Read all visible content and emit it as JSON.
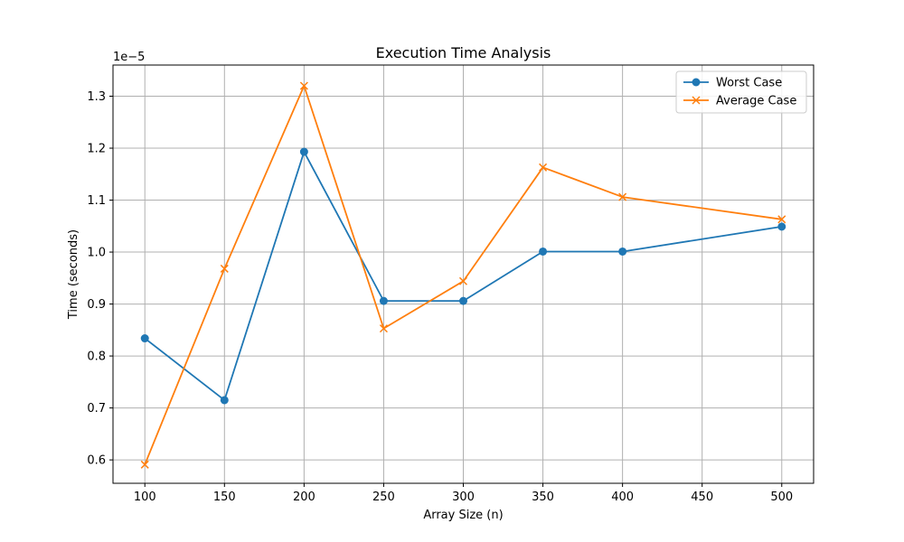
{
  "chart_data": {
    "type": "line",
    "title": "Execution Time Analysis",
    "xlabel": "Array Size (n)",
    "ylabel": "Time (seconds)",
    "y_offset_label": "1e−5",
    "xlim": [
      80,
      520
    ],
    "ylim": [
      5.55e-06,
      1.36e-05
    ],
    "x_ticks": [
      100,
      150,
      200,
      250,
      300,
      350,
      400,
      450,
      500
    ],
    "x_tick_labels": [
      "100",
      "150",
      "200",
      "250",
      "300",
      "350",
      "400",
      "450",
      "500"
    ],
    "y_ticks": [
      6e-06,
      7e-06,
      8e-06,
      9e-06,
      1e-05,
      1.1e-05,
      1.2e-05,
      1.3e-05
    ],
    "y_tick_labels": [
      "0.6",
      "0.7",
      "0.8",
      "0.9",
      "1.0",
      "1.1",
      "1.2",
      "1.3"
    ],
    "grid": true,
    "legend_position": "top-right",
    "x": [
      100,
      150,
      200,
      250,
      300,
      350,
      400,
      500
    ],
    "series": [
      {
        "name": "Worst Case",
        "color": "#1f77b4",
        "marker": "circle",
        "values": [
          8.34e-06,
          7.15e-06,
          1.193e-05,
          9.06e-06,
          9.06e-06,
          1.001e-05,
          1.001e-05,
          1.049e-05
        ]
      },
      {
        "name": "Average Case",
        "color": "#ff7f0e",
        "marker": "x",
        "values": [
          5.91e-06,
          9.68e-06,
          1.32e-05,
          8.53e-06,
          9.44e-06,
          1.163e-05,
          1.106e-05,
          1.063e-05
        ]
      }
    ]
  }
}
